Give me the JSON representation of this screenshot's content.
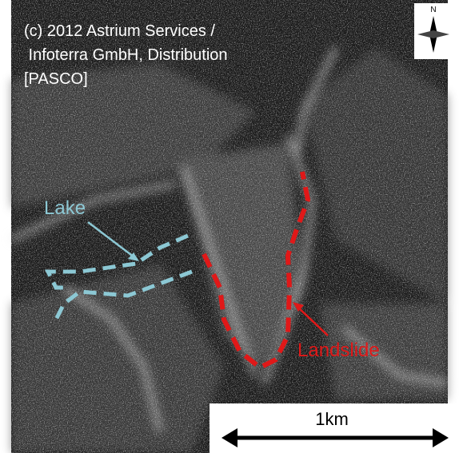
{
  "copyright": [
    "(c) 2012 Astrium Services /",
    " Infoterra GmbH, Distribution",
    "[PASCO]"
  ],
  "compass": "N",
  "labels": {
    "lake": "Lake",
    "landslide": "Landslide"
  },
  "scale_bar": "1km"
}
